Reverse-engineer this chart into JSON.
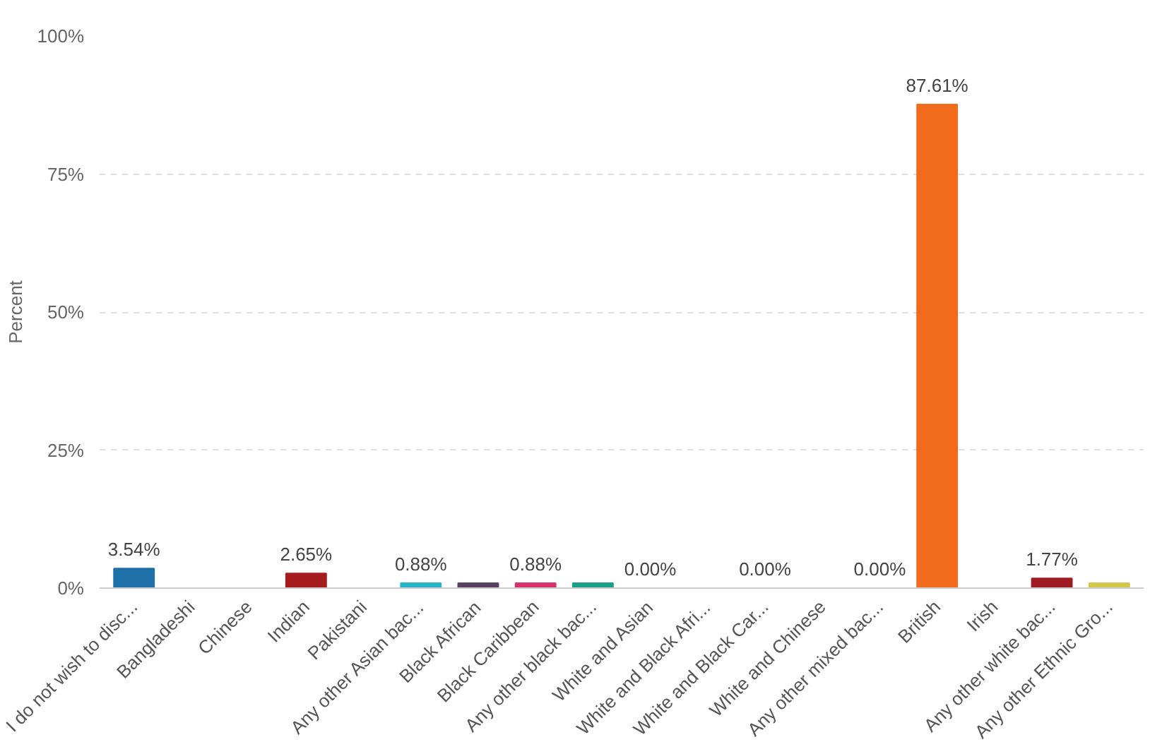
{
  "chart_data": {
    "type": "bar",
    "ylabel": "Percent",
    "categories": [
      "I do not wish to disc...",
      "Bangladeshi",
      "Chinese",
      "Indian",
      "Pakistani",
      "Any other Asian bac...",
      "Black African",
      "Black Caribbean",
      "Any other black bac...",
      "White and Asian",
      "White and Black Afri...",
      "White and Black Car...",
      "White and Chinese",
      "Any other mixed bac...",
      "British",
      "Irish",
      "Any other white bac...",
      "Any other Ethnic Gro..."
    ],
    "values": [
      3.54,
      0,
      0,
      2.65,
      0,
      0.88,
      0.88,
      0.88,
      0.88,
      0,
      0,
      0,
      0,
      0,
      87.61,
      0,
      1.77,
      0.88
    ],
    "colors": [
      "#1f6fa8",
      "#7b3f98",
      "#3b8f4a",
      "#a61c1c",
      "#e08a2c",
      "#28b4c8",
      "#5a4060",
      "#d6336c",
      "#1aa08a",
      "#8c8c8c",
      "#4a6fc0",
      "#c04a8c",
      "#6aa84f",
      "#b08030",
      "#f26b1d",
      "#4a9bd0",
      "#9e1b24",
      "#d4c84a"
    ],
    "value_labels": [
      "3.54%",
      null,
      null,
      "2.65%",
      null,
      "0.88%",
      null,
      "0.88%",
      null,
      "0.00%",
      null,
      "0.00%",
      null,
      "0.00%",
      "87.61%",
      null,
      "1.77%",
      null
    ],
    "ylim": [
      0,
      100
    ],
    "yticks": [
      {
        "value": 0,
        "label": "0%"
      },
      {
        "value": 25,
        "label": "25%"
      },
      {
        "value": 50,
        "label": "50%"
      },
      {
        "value": 75,
        "label": "75%"
      },
      {
        "value": 100,
        "label": "100%"
      }
    ],
    "grid": "y"
  }
}
